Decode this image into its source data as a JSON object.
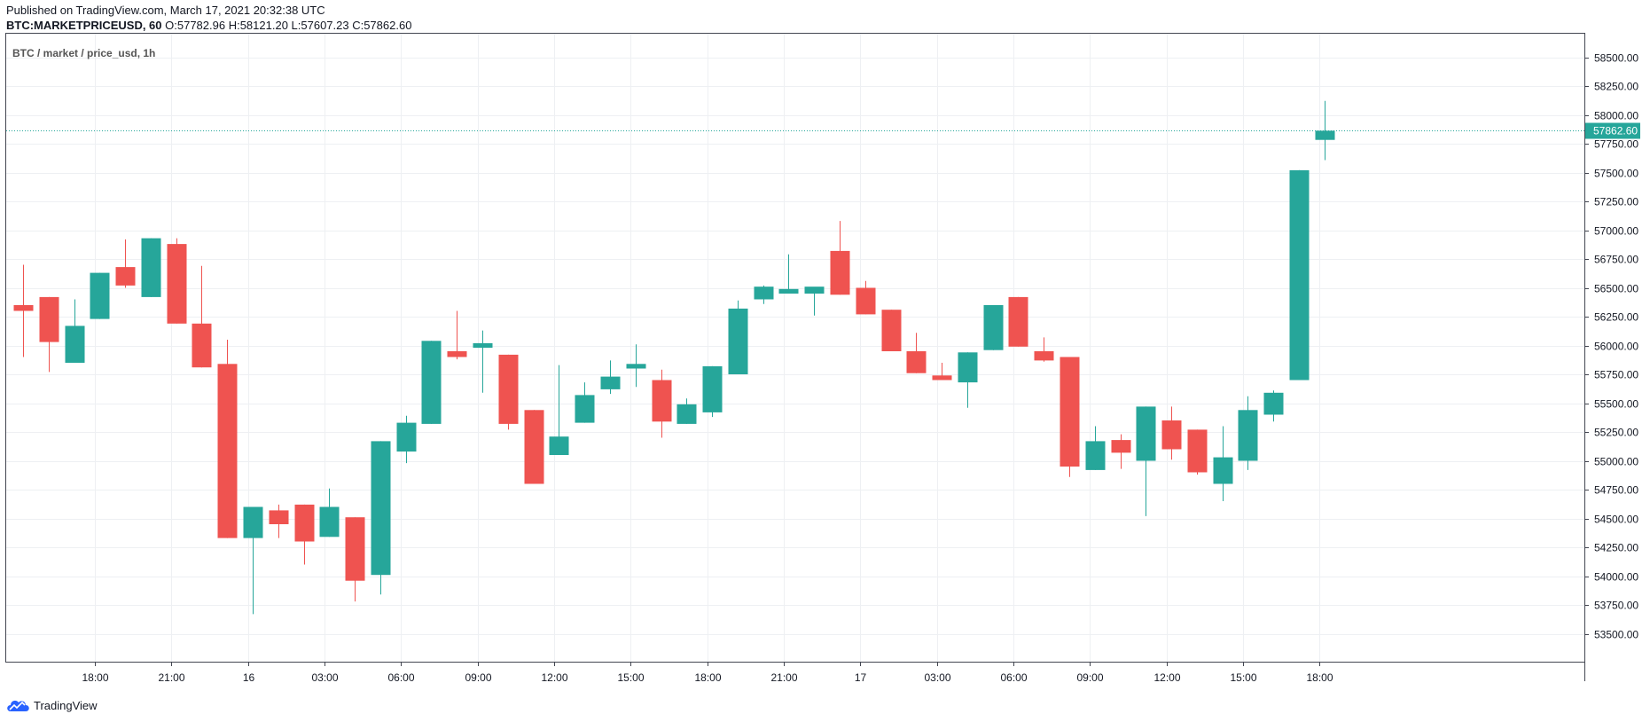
{
  "header": {
    "published": "Published on TradingView.com, March 17, 2021 20:32:38 UTC",
    "symbol": "BTC:MARKETPRICEUSD, 60",
    "ohlc": "O:57782.96 H:58121.20 L:57607.23 C:57862.60"
  },
  "footer": {
    "brand": "TradingView",
    "logo_icon": "tradingview-cloud-icon"
  },
  "colors": {
    "up": "#26a69a",
    "down": "#ef5350",
    "grid": "#eef0f3",
    "border": "#434651",
    "last_price": "#26a69a"
  },
  "chart_data": {
    "type": "candlestick",
    "title": "BTC / market / price_usd, 1h",
    "ylim": [
      53250,
      58750
    ],
    "y_ticks": [
      53500,
      53750,
      54000,
      54250,
      54500,
      54750,
      55000,
      55250,
      55500,
      55750,
      56000,
      56250,
      56500,
      56750,
      57000,
      57250,
      57500,
      57750,
      58000,
      58250,
      58500
    ],
    "y_tick_labels": [
      "53500.00",
      "53750.00",
      "54000.00",
      "54250.00",
      "54500.00",
      "54750.00",
      "55000.00",
      "55250.00",
      "55500.00",
      "55750.00",
      "56000.00",
      "56250.00",
      "56500.00",
      "56750.00",
      "57000.00",
      "57250.00",
      "57500.00",
      "57750.00",
      "58000.00",
      "58250.00",
      "58500.00"
    ],
    "x_ticks": [
      {
        "label": "18:00",
        "index": 2
      },
      {
        "label": "21:00",
        "index": 5
      },
      {
        "label": "16",
        "index": 8
      },
      {
        "label": "03:00",
        "index": 11
      },
      {
        "label": "06:00",
        "index": 14
      },
      {
        "label": "09:00",
        "index": 17
      },
      {
        "label": "12:00",
        "index": 20
      },
      {
        "label": "15:00",
        "index": 23
      },
      {
        "label": "18:00",
        "index": 26
      },
      {
        "label": "21:00",
        "index": 29
      },
      {
        "label": "17",
        "index": 32
      },
      {
        "label": "03:00",
        "index": 35
      },
      {
        "label": "06:00",
        "index": 38
      },
      {
        "label": "09:00",
        "index": 41
      },
      {
        "label": "12:00",
        "index": 44
      },
      {
        "label": "15:00",
        "index": 47
      },
      {
        "label": "18:00",
        "index": 50
      }
    ],
    "candles": [
      {
        "o": 56350,
        "h": 56700,
        "l": 55900,
        "c": 56300
      },
      {
        "o": 56420,
        "h": 56420,
        "l": 55770,
        "c": 56030
      },
      {
        "o": 55850,
        "h": 56400,
        "l": 55850,
        "c": 56170
      },
      {
        "o": 56230,
        "h": 56630,
        "l": 56230,
        "c": 56630
      },
      {
        "o": 56680,
        "h": 56920,
        "l": 56500,
        "c": 56520
      },
      {
        "o": 56420,
        "h": 56930,
        "l": 56420,
        "c": 56930
      },
      {
        "o": 56880,
        "h": 56930,
        "l": 56190,
        "c": 56190
      },
      {
        "o": 56190,
        "h": 56690,
        "l": 55810,
        "c": 55810
      },
      {
        "o": 55840,
        "h": 56050,
        "l": 54330,
        "c": 54330
      },
      {
        "o": 54330,
        "h": 54600,
        "l": 53670,
        "c": 54600
      },
      {
        "o": 54570,
        "h": 54620,
        "l": 54330,
        "c": 54450
      },
      {
        "o": 54620,
        "h": 54620,
        "l": 54100,
        "c": 54300
      },
      {
        "o": 54340,
        "h": 54760,
        "l": 54340,
        "c": 54600
      },
      {
        "o": 54510,
        "h": 54510,
        "l": 53780,
        "c": 53960
      },
      {
        "o": 54010,
        "h": 55170,
        "l": 53840,
        "c": 55170
      },
      {
        "o": 55080,
        "h": 55390,
        "l": 54980,
        "c": 55330
      },
      {
        "o": 55320,
        "h": 56040,
        "l": 55320,
        "c": 56040
      },
      {
        "o": 55950,
        "h": 56300,
        "l": 55880,
        "c": 55900
      },
      {
        "o": 55980,
        "h": 56130,
        "l": 55590,
        "c": 56020
      },
      {
        "o": 55920,
        "h": 55920,
        "l": 55270,
        "c": 55320
      },
      {
        "o": 55440,
        "h": 55440,
        "l": 54800,
        "c": 54800
      },
      {
        "o": 55050,
        "h": 55830,
        "l": 55050,
        "c": 55210
      },
      {
        "o": 55330,
        "h": 55680,
        "l": 55330,
        "c": 55570
      },
      {
        "o": 55620,
        "h": 55870,
        "l": 55580,
        "c": 55730
      },
      {
        "o": 55800,
        "h": 56010,
        "l": 55640,
        "c": 55840
      },
      {
        "o": 55700,
        "h": 55790,
        "l": 55200,
        "c": 55340
      },
      {
        "o": 55320,
        "h": 55540,
        "l": 55320,
        "c": 55490
      },
      {
        "o": 55420,
        "h": 55820,
        "l": 55380,
        "c": 55820
      },
      {
        "o": 55750,
        "h": 56390,
        "l": 55750,
        "c": 56320
      },
      {
        "o": 56400,
        "h": 56520,
        "l": 56360,
        "c": 56510
      },
      {
        "o": 56450,
        "h": 56790,
        "l": 56450,
        "c": 56490
      },
      {
        "o": 56450,
        "h": 56500,
        "l": 56260,
        "c": 56510
      },
      {
        "o": 56820,
        "h": 57080,
        "l": 56440,
        "c": 56440
      },
      {
        "o": 56500,
        "h": 56560,
        "l": 56270,
        "c": 56270
      },
      {
        "o": 56310,
        "h": 56310,
        "l": 55950,
        "c": 55950
      },
      {
        "o": 55950,
        "h": 56110,
        "l": 55760,
        "c": 55760
      },
      {
        "o": 55740,
        "h": 55850,
        "l": 55700,
        "c": 55700
      },
      {
        "o": 55680,
        "h": 55940,
        "l": 55460,
        "c": 55940
      },
      {
        "o": 55960,
        "h": 56350,
        "l": 55960,
        "c": 56350
      },
      {
        "o": 56420,
        "h": 56420,
        "l": 55990,
        "c": 55990
      },
      {
        "o": 55950,
        "h": 56070,
        "l": 55860,
        "c": 55870
      },
      {
        "o": 55900,
        "h": 55900,
        "l": 54860,
        "c": 54950
      },
      {
        "o": 54920,
        "h": 55300,
        "l": 54920,
        "c": 55170
      },
      {
        "o": 55180,
        "h": 55230,
        "l": 54930,
        "c": 55070
      },
      {
        "o": 55000,
        "h": 55470,
        "l": 54520,
        "c": 55470
      },
      {
        "o": 55350,
        "h": 55470,
        "l": 55010,
        "c": 55100
      },
      {
        "o": 55270,
        "h": 55270,
        "l": 54880,
        "c": 54900
      },
      {
        "o": 54800,
        "h": 55300,
        "l": 54650,
        "c": 55030
      },
      {
        "o": 55000,
        "h": 55560,
        "l": 54920,
        "c": 55440
      },
      {
        "o": 55400,
        "h": 55610,
        "l": 55340,
        "c": 55590
      },
      {
        "o": 55700,
        "h": 57520,
        "l": 55700,
        "c": 57520
      },
      {
        "o": 57782.96,
        "h": 58121.2,
        "l": 57607.23,
        "c": 57862.6
      }
    ],
    "last_price": 57862.6,
    "last_price_label": "57862.60",
    "grid": true
  }
}
